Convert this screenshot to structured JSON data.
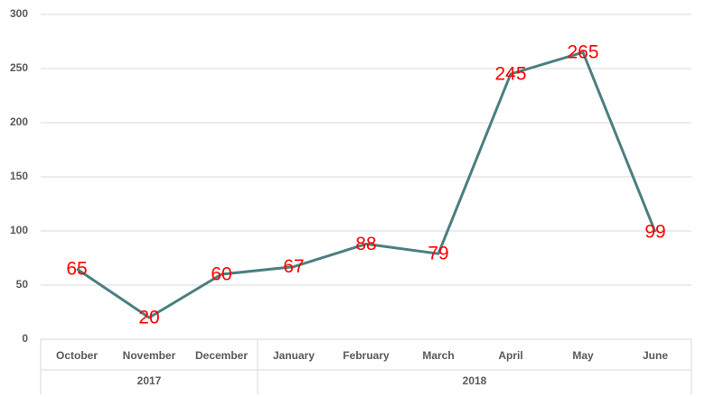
{
  "chart_data": {
    "type": "line",
    "groups": [
      {
        "label": "2017",
        "categories": [
          "October",
          "November",
          "December"
        ]
      },
      {
        "label": "2018",
        "categories": [
          "January",
          "February",
          "March",
          "April",
          "May",
          "June"
        ]
      }
    ],
    "series": [
      {
        "color": "#4a7f80",
        "values": [
          65,
          20,
          60,
          67,
          88,
          79,
          245,
          265,
          99
        ]
      }
    ],
    "label_color": "#ff0000",
    "ylim": [
      0,
      300
    ],
    "yticks": [
      0,
      50,
      100,
      150,
      200,
      250,
      300
    ],
    "grid": true
  }
}
